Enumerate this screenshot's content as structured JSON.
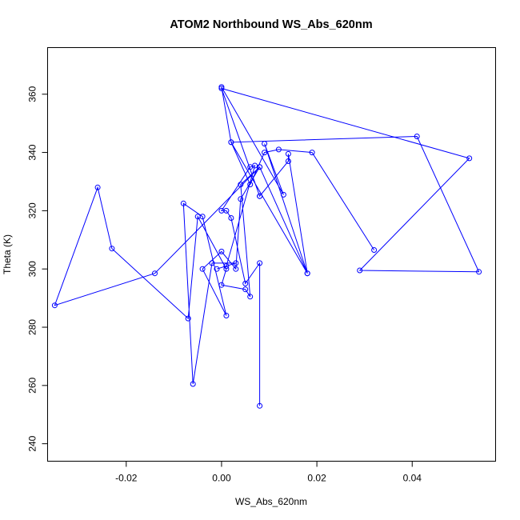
{
  "chart_data": {
    "type": "line",
    "title": "ATOM2 Northbound WS_Abs_620nm",
    "xlabel": "WS_Abs_620nm",
    "ylabel": "Theta (K)",
    "xlim": [
      -0.0365,
      0.0575
    ],
    "ylim": [
      234,
      376
    ],
    "xticks": [
      -0.02,
      0.0,
      0.02,
      0.04
    ],
    "xtick_labels": [
      "-0.02",
      "0.00",
      "0.02",
      "0.04"
    ],
    "yticks": [
      240,
      260,
      280,
      300,
      320,
      340,
      360
    ],
    "ytick_labels": [
      "240",
      "260",
      "280",
      "300",
      "320",
      "340",
      "360"
    ],
    "grid": false,
    "line_color": "#0000ff",
    "marker": "open-circle",
    "series": [
      {
        "x": [
          0.008,
          0.008,
          0.005,
          0.002,
          0.001,
          0.0,
          0.006,
          0.007,
          0.001,
          -0.001,
          0.003,
          -0.002,
          -0.006,
          -0.008,
          -0.004,
          0.001,
          -0.004,
          0.0,
          0.003,
          0.004,
          0.008,
          -0.014,
          -0.035,
          -0.026,
          -0.023,
          -0.007,
          -0.005,
          0.001,
          0.0,
          0.005,
          0.006,
          0.004,
          0.008,
          0.018,
          0.002,
          0.041,
          0.054,
          0.029,
          0.052,
          0.0,
          0.008,
          0.008,
          0.014,
          0.014,
          0.018,
          0.009,
          0.013,
          0.0,
          0.002,
          0.006,
          0.009,
          0.012,
          0.019,
          0.032
        ],
        "y": [
          253,
          302,
          295,
          317.5,
          320,
          320,
          335,
          335.5,
          301,
          300,
          302,
          302,
          260.5,
          322.5,
          318,
          284,
          300,
          306,
          300,
          324,
          335,
          298.5,
          287.5,
          328,
          307,
          283,
          318,
          300,
          294.5,
          293,
          290.5,
          329,
          335,
          298.5,
          343.5,
          345.5,
          299,
          299.5,
          338,
          362,
          325,
          325,
          337,
          339.5,
          298.5,
          343,
          325.5,
          362.5,
          343.5,
          329,
          340,
          341,
          340,
          306.5
        ]
      }
    ]
  }
}
